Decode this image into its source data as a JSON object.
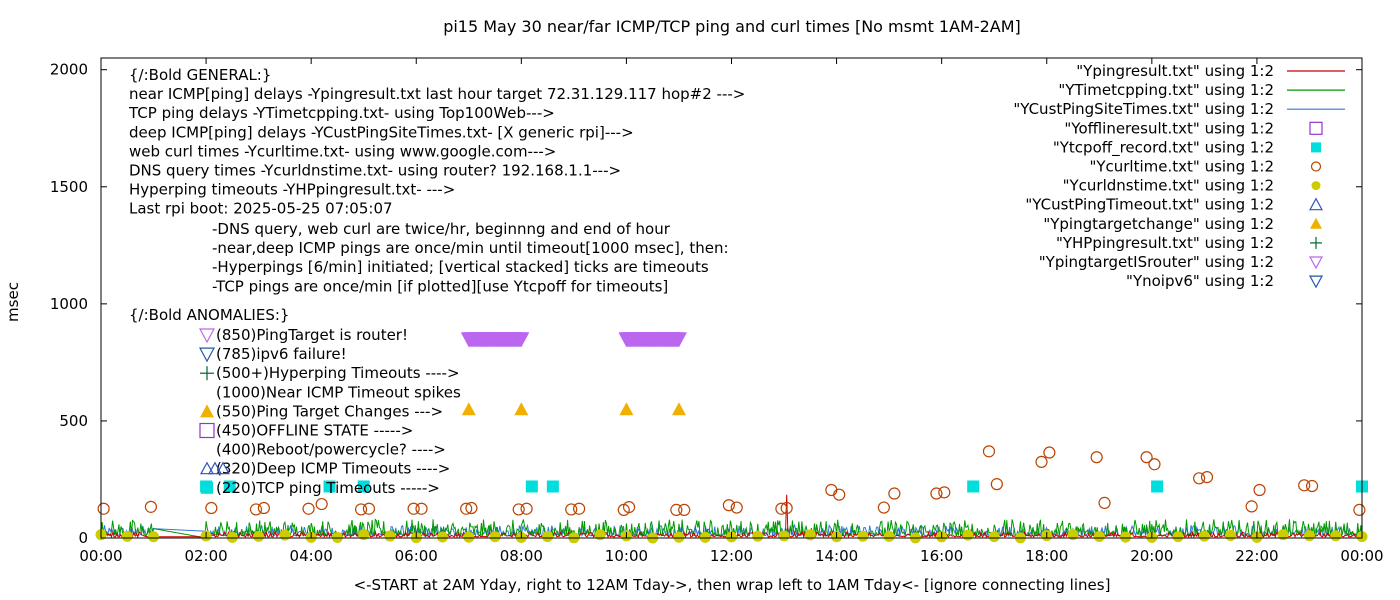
{
  "chart_data": {
    "type": "line",
    "title": "pi15 May 30  near/far ICMP/TCP ping and curl times [No msmt 1AM-2AM]",
    "xlabel": "<-START at 2AM Yday, right to 12AM Tday->, then wrap left to 1AM Tday<- [ignore connecting lines]",
    "ylabel": "msec",
    "xlim": [
      0,
      24
    ],
    "ylim": [
      0,
      2050
    ],
    "x_ticks": [
      0,
      2,
      4,
      6,
      8,
      10,
      12,
      14,
      16,
      18,
      20,
      22,
      24
    ],
    "x_tick_labels": [
      "00:00",
      "02:00",
      "04:00",
      "06:00",
      "08:00",
      "10:00",
      "12:00",
      "14:00",
      "16:00",
      "18:00",
      "20:00",
      "22:00",
      "00:00"
    ],
    "y_ticks": [
      0,
      500,
      1000,
      1500,
      2000
    ],
    "y_tick_labels": [
      "0",
      "500",
      "1000",
      "1500",
      "2000"
    ],
    "grid": false,
    "legend_position": "top-right",
    "legend": [
      {
        "label": "\"Ypingresult.txt\" using 1:2",
        "color": "#cc0000",
        "marker": "line"
      },
      {
        "label": "\"YTimetcpping.txt\" using 1:2",
        "color": "#009900",
        "marker": "line"
      },
      {
        "label": "\"YCustPingSiteTimes.txt\" using 1:2",
        "color": "#3377dd",
        "marker": "line"
      },
      {
        "label": "\"Yofflineresult.txt\" using 1:2",
        "color": "#9933cc",
        "marker": "open-square"
      },
      {
        "label": "\"Ytcpoff_record.txt\" using 1:2",
        "color": "#00dddd",
        "marker": "filled-square"
      },
      {
        "label": "\"Ycurltime.txt\" using 1:2",
        "color": "#bb4400",
        "marker": "open-circle"
      },
      {
        "label": "\"Ycurldnstime.txt\" using 1:2",
        "color": "#cccc00",
        "marker": "filled-circle"
      },
      {
        "label": "\"YCustPingTimeout.txt\" using 1:2",
        "color": "#3355bb",
        "marker": "open-triangle"
      },
      {
        "label": "\"Ypingtargetchange\" using 1:2",
        "color": "#f0b000",
        "marker": "filled-triangle"
      },
      {
        "label": "\"YHPpingresult.txt\" using 1:2",
        "color": "#006633",
        "marker": "plus"
      },
      {
        "label": "\"YpingtargetISrouter\" using 1:2",
        "color": "#bb66ee",
        "marker": "open-triangle-down"
      },
      {
        "label": "\"Ynoipv6\" using 1:2",
        "color": "#2255aa",
        "marker": "open-triangle-down"
      }
    ],
    "general_notes": [
      "{/:Bold GENERAL:}",
      "near ICMP[ping] delays -Ypingresult.txt last hour target 72.31.129.117 hop#2 --->",
      "TCP ping delays -YTimetcpping.txt- using Top100Web--->",
      "deep ICMP[ping] delays -YCustPingSiteTimes.txt- [X generic rpi]--->",
      "web curl times -Ycurltime.txt- using www.google.com--->",
      "DNS query times -Ycurldnstime.txt- using router? 192.168.1.1--->",
      "Hyperping timeouts -YHPpingresult.txt- --->",
      "Last rpi boot: 2025-05-25 07:05:07"
    ],
    "detail_notes": [
      "-DNS query, web curl are twice/hr, beginnng and end of hour",
      "-near,deep ICMP pings are once/min until timeout[1000 msec], then:",
      "  -Hyperpings [6/min] initiated; [vertical stacked] ticks are timeouts",
      "-TCP pings are once/min [if plotted][use Ytcpoff for timeouts]"
    ],
    "anomalies_title": "{/:Bold ANOMALIES:}",
    "anomaly_notes": [
      {
        "text": "(850)PingTarget is router!",
        "marker": "open-triangle-down-purple"
      },
      {
        "text": "(785)ipv6 failure!",
        "marker": "open-triangle-down-blue"
      },
      {
        "text": "(500+)Hyperping Timeouts ---->",
        "marker": "plus"
      },
      {
        "text": "(1000)Near ICMP Timeout spikes",
        "marker": ""
      },
      {
        "text": "(550)Ping Target Changes --->",
        "marker": "filled-triangle"
      },
      {
        "text": "(450)OFFLINE STATE ----->",
        "marker": "open-square"
      },
      {
        "text": "(400)Reboot/powercycle? ---->",
        "marker": ""
      },
      {
        "text": "(320)Deep ICMP Timeouts ---->",
        "marker": "open-triangles"
      },
      {
        "text": "(220)TCP ping Timeouts ----->",
        "marker": "filled-square"
      }
    ],
    "series": {
      "router_markers": {
        "name": "\"YpingtargetISrouter\" using 1:2",
        "value": 850,
        "x_ranges": [
          [
            7.0,
            8.0
          ],
          [
            10.0,
            11.0
          ]
        ]
      },
      "target_changes": {
        "name": "\"Ypingtargetchange\" using 1:2",
        "value": 550,
        "x": [
          7.0,
          8.0,
          10.0,
          11.0
        ]
      },
      "tcp_timeouts": {
        "name": "\"Ytcpoff_record.txt\" using 1:2",
        "value": 220,
        "x": [
          2.0,
          2.45,
          4.35,
          5.0,
          8.2,
          8.6,
          16.6,
          20.1,
          24.0
        ]
      },
      "curl_times": {
        "name": "\"Ycurltime.txt\" using 1:2",
        "points": [
          [
            0.05,
            125
          ],
          [
            0.95,
            133
          ],
          [
            2.1,
            128
          ],
          [
            2.95,
            122
          ],
          [
            3.1,
            128
          ],
          [
            3.95,
            125
          ],
          [
            4.2,
            145
          ],
          [
            4.95,
            122
          ],
          [
            5.1,
            125
          ],
          [
            5.95,
            125
          ],
          [
            6.1,
            125
          ],
          [
            6.95,
            125
          ],
          [
            7.05,
            128
          ],
          [
            7.95,
            122
          ],
          [
            8.1,
            125
          ],
          [
            8.95,
            122
          ],
          [
            9.1,
            125
          ],
          [
            9.95,
            120
          ],
          [
            10.05,
            132
          ],
          [
            10.95,
            120
          ],
          [
            11.1,
            120
          ],
          [
            11.95,
            140
          ],
          [
            12.1,
            130
          ],
          [
            12.95,
            125
          ],
          [
            13.05,
            128
          ],
          [
            13.9,
            205
          ],
          [
            14.05,
            185
          ],
          [
            14.9,
            130
          ],
          [
            15.1,
            190
          ],
          [
            15.9,
            190
          ],
          [
            16.05,
            195
          ],
          [
            16.9,
            370
          ],
          [
            17.05,
            230
          ],
          [
            17.9,
            325
          ],
          [
            18.05,
            365
          ],
          [
            18.95,
            345
          ],
          [
            19.1,
            150
          ],
          [
            19.9,
            345
          ],
          [
            20.05,
            315
          ],
          [
            20.9,
            255
          ],
          [
            21.05,
            260
          ],
          [
            21.9,
            135
          ],
          [
            22.05,
            205
          ],
          [
            22.9,
            225
          ],
          [
            23.05,
            222
          ],
          [
            23.95,
            120
          ]
        ]
      },
      "curldns_times": {
        "name": "\"Ycurldnstime.txt\" using 1:2",
        "value_range": [
          0,
          15
        ],
        "x_step": 0.5
      },
      "near_ping": {
        "name": "\"Ypingresult.txt\" using 1:2",
        "value_range": [
          5,
          25
        ],
        "spike": {
          "x": 13.05,
          "value": 185
        }
      },
      "tcp_ping": {
        "name": "\"YTimetcpping.txt\" using 1:2",
        "value_range": [
          10,
          80
        ],
        "ramp": [
          [
            1.0,
            40
          ],
          [
            2.0,
            0
          ]
        ]
      },
      "deep_ping": {
        "name": "\"YCustPingSiteTimes.txt\" using 1:2",
        "value_range": [
          10,
          55
        ]
      }
    }
  }
}
